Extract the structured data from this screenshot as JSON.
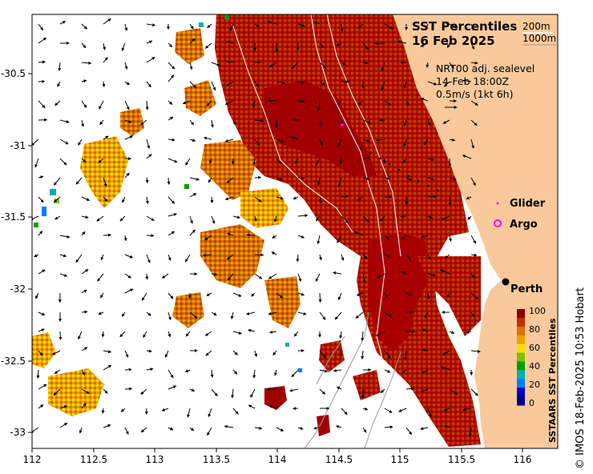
{
  "title": {
    "line1": "SST Percentiles",
    "line2": "16 Feb 2025"
  },
  "isobaths": {
    "shallow": "200m",
    "deep": "1000m"
  },
  "currents": {
    "source": "NRT00 adj. sealevel",
    "time": "14-Feb 18:00Z",
    "scale": "0.5m/s (1kt 6h)"
  },
  "legend": {
    "glider": "Glider",
    "argo": "Argo",
    "city": "Perth"
  },
  "colorbar": {
    "label": "SSTAARS SST Percentiles",
    "ticks": [
      "100",
      "80",
      "60",
      "40",
      "20",
      "0"
    ],
    "colors": [
      "#8b0000",
      "#c03000",
      "#e07000",
      "#f0a000",
      "#f0e000",
      "#80c000",
      "#00a000",
      "#00b0b0",
      "#0080ff",
      "#0000c0",
      "#00008b"
    ]
  },
  "x_axis": {
    "ticks": [
      "112",
      "112.5",
      "113",
      "113.5",
      "114",
      "114.5",
      "115",
      "115.5",
      "116"
    ]
  },
  "y_axis": {
    "ticks": [
      "-30.5",
      "-31",
      "-31.5",
      "-32",
      "-32.5",
      "-33"
    ]
  },
  "credit": "© IMOS 18-Feb-2025 10:53 Hobart",
  "colors": {
    "land": "#f9c99b",
    "hot": "#b00000",
    "warm": "#c85000",
    "mid": "#f0a000",
    "cool": "#f0e000"
  }
}
